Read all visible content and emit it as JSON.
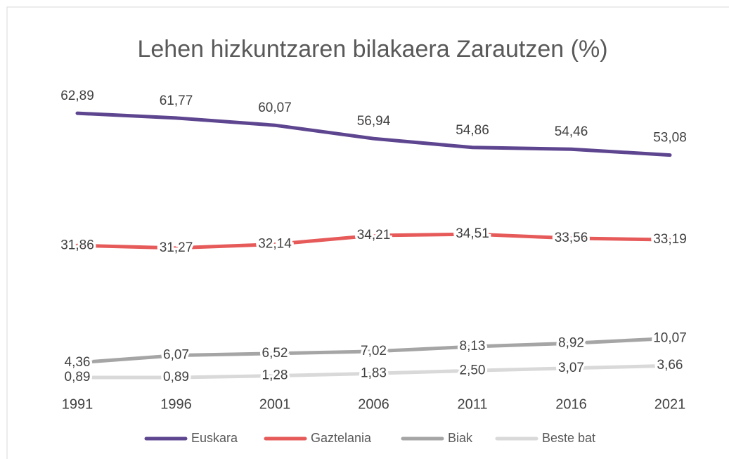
{
  "chart_data": {
    "type": "line",
    "title": "Lehen hizkuntzaren bilakaera Zarautzen (%)",
    "categories": [
      "1991",
      "1996",
      "2001",
      "2006",
      "2011",
      "2016",
      "2021"
    ],
    "ylim": [
      0,
      70
    ],
    "series": [
      {
        "name": "Euskara",
        "color": "#5e4590",
        "values": [
          62.89,
          61.77,
          60.07,
          56.94,
          54.86,
          54.46,
          53.08
        ],
        "value_labels": [
          "62,89",
          "61,77",
          "60,07",
          "56,94",
          "54,86",
          "54,46",
          "53,08"
        ]
      },
      {
        "name": "Gaztelania",
        "color": "#e65a5a",
        "values": [
          31.86,
          31.27,
          32.14,
          34.21,
          34.51,
          33.56,
          33.19
        ],
        "value_labels": [
          "31,86",
          "31,27",
          "32,14",
          "34,21",
          "34,51",
          "33,56",
          "33,19"
        ]
      },
      {
        "name": "Biak",
        "color": "#a5a5a5",
        "values": [
          4.36,
          6.07,
          6.52,
          7.02,
          8.13,
          8.92,
          10.07
        ],
        "value_labels": [
          "4,36",
          "6,07",
          "6,52",
          "7,02",
          "8,13",
          "8,92",
          "10,07"
        ]
      },
      {
        "name": "Beste bat",
        "color": "#d9d9d9",
        "values": [
          0.89,
          0.89,
          1.28,
          1.83,
          2.5,
          3.07,
          3.66
        ],
        "value_labels": [
          "0,89",
          "0,89",
          "1,28",
          "1,83",
          "2,50",
          "3,07",
          "3,66"
        ]
      }
    ],
    "legend": "bottom"
  }
}
